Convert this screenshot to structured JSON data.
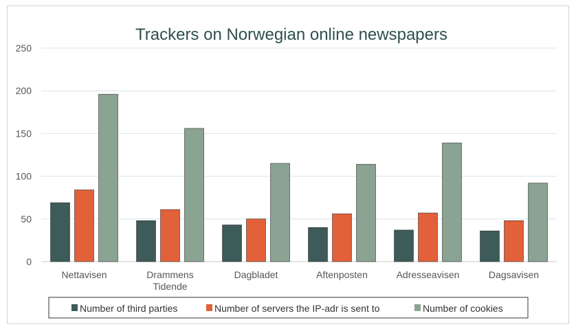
{
  "chart_data": {
    "type": "bar",
    "title": "Trackers on Norwegian online newspapers",
    "xlabel": "",
    "ylabel": "",
    "ylim": [
      0,
      250
    ],
    "yticks": [
      0,
      50,
      100,
      150,
      200,
      250
    ],
    "grid": true,
    "legend_position": "bottom",
    "categories": [
      [
        "Nettavisen"
      ],
      [
        "Drammens",
        "Tidende"
      ],
      [
        "Dagbladet"
      ],
      [
        "Aftenposten"
      ],
      [
        "Adresseavisen"
      ],
      [
        "Dagsavisen"
      ]
    ],
    "series": [
      {
        "name": "Number of third parties",
        "color": "#3d5b58",
        "values": [
          69,
          48,
          43,
          40,
          37,
          36
        ]
      },
      {
        "name": "Number of servers the IP-adr is sent to",
        "color": "#e2603a",
        "values": [
          84,
          61,
          50,
          56,
          57,
          48
        ]
      },
      {
        "name": "Number of cookies",
        "color": "#8aa393",
        "values": [
          196,
          156,
          115,
          114,
          139,
          92
        ]
      }
    ]
  }
}
